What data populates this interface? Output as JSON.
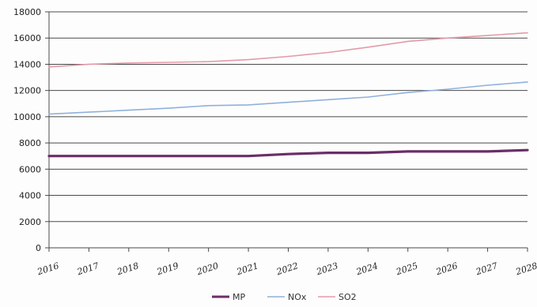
{
  "chart_data": {
    "type": "line",
    "title": "",
    "xlabel": "",
    "ylabel": "",
    "categories": [
      "2016",
      "2017",
      "2018",
      "2019",
      "2020",
      "2021",
      "2022",
      "2023",
      "2024",
      "2025",
      "2026",
      "2027",
      "2028"
    ],
    "ylim": [
      0,
      18000
    ],
    "yticks": [
      0,
      2000,
      4000,
      6000,
      8000,
      10000,
      12000,
      14000,
      16000,
      18000
    ],
    "grid": true,
    "legend_position": "bottom",
    "series": [
      {
        "name": "MP",
        "color": "#6b2d68",
        "values": [
          7000,
          7000,
          7000,
          7000,
          7000,
          7000,
          7150,
          7250,
          7250,
          7350,
          7350,
          7350,
          7450
        ]
      },
      {
        "name": "NOx",
        "color": "#8fb0dc",
        "values": [
          10200,
          10350,
          10500,
          10650,
          10850,
          10900,
          11100,
          11300,
          11500,
          11850,
          12100,
          12400,
          12650
        ]
      },
      {
        "name": "SO2",
        "color": "#e39aa8",
        "values": [
          13800,
          14000,
          14100,
          14150,
          14200,
          14350,
          14600,
          14900,
          15300,
          15750,
          16000,
          16200,
          16400
        ]
      }
    ]
  }
}
